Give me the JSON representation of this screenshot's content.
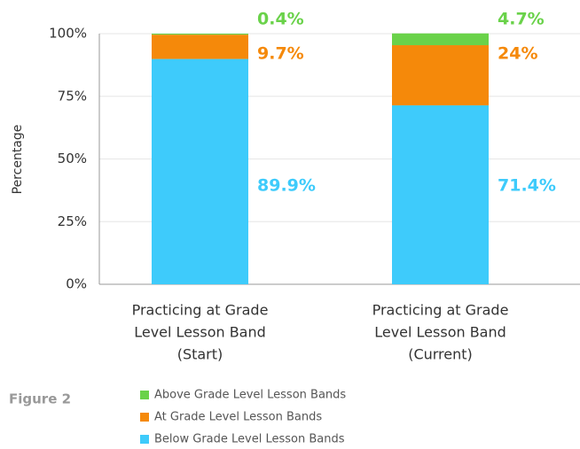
{
  "chart_data": {
    "type": "stacked_bar",
    "y_label": "Percentage",
    "figure_label": "Figure 2",
    "categories": [
      [
        "Practicing at Grade",
        "Level Lesson Band",
        "(Start)"
      ],
      [
        "Practicing at Grade",
        "Level Lesson Band",
        "(Current)"
      ]
    ],
    "series": [
      {
        "name": "Below Grade Level Lesson Bands",
        "color": "#3ecbfb",
        "values": [
          89.9,
          71.4
        ],
        "value_labels": [
          "89.9%",
          "71.4%"
        ]
      },
      {
        "name": "At Grade Level Lesson Bands",
        "color": "#f5890a",
        "values": [
          9.7,
          24
        ],
        "value_labels": [
          "9.7%",
          "24%"
        ]
      },
      {
        "name": "Above Grade Level Lesson Bands",
        "color": "#6ad24a",
        "values": [
          0.4,
          4.7
        ],
        "value_labels": [
          "0.4%",
          "4.7%"
        ]
      }
    ],
    "ylim": [
      0,
      100
    ],
    "yticks": [
      {
        "value": 0,
        "label": "0%"
      },
      {
        "value": 25,
        "label": "25%"
      },
      {
        "value": 50,
        "label": "50%"
      },
      {
        "value": 75,
        "label": "75%"
      },
      {
        "value": 100,
        "label": "100%"
      }
    ],
    "grid": true
  }
}
